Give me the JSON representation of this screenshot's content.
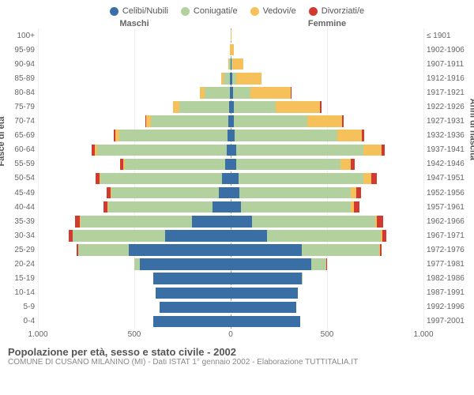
{
  "legend": {
    "items": [
      {
        "label": "Celibi/Nubili",
        "color": "#3a6fa6"
      },
      {
        "label": "Coniugati/e",
        "color": "#b2d19e"
      },
      {
        "label": "Vedovi/e",
        "color": "#f6c15a"
      },
      {
        "label": "Divorziati/e",
        "color": "#d23a2f"
      }
    ]
  },
  "headers": {
    "male": "Maschi",
    "female": "Femmine"
  },
  "axes": {
    "left_title": "Fasce di età",
    "right_title": "Anni di nascita",
    "x_ticks": [
      {
        "pos": 0,
        "label": "1.000"
      },
      {
        "pos": 25,
        "label": "500"
      },
      {
        "pos": 50,
        "label": "0"
      },
      {
        "pos": 75,
        "label": "500"
      },
      {
        "pos": 100,
        "label": "1.000"
      }
    ],
    "x_max": 1000,
    "grid_color": "#eeeeee",
    "center_line_color": "#999999"
  },
  "age_labels": [
    "100+",
    "95-99",
    "90-94",
    "85-89",
    "80-84",
    "75-79",
    "70-74",
    "65-69",
    "60-64",
    "55-59",
    "50-54",
    "45-49",
    "40-44",
    "35-39",
    "30-34",
    "25-29",
    "20-24",
    "15-19",
    "10-14",
    "5-9",
    "0-4"
  ],
  "birth_labels": [
    "≤ 1901",
    "1902-1906",
    "1907-1911",
    "1912-1916",
    "1917-1921",
    "1922-1926",
    "1927-1931",
    "1932-1936",
    "1937-1941",
    "1942-1946",
    "1947-1951",
    "1952-1956",
    "1957-1961",
    "1962-1966",
    "1967-1971",
    "1972-1976",
    "1977-1981",
    "1982-1986",
    "1987-1991",
    "1992-1996",
    "1997-2001"
  ],
  "series_colors": {
    "single": "#3a6fa6",
    "married": "#b2d19e",
    "widowed": "#f6c15a",
    "divorced": "#d23a2f"
  },
  "rows": [
    {
      "m": {
        "single": 0,
        "married": 0,
        "widowed": 1,
        "divorced": 0
      },
      "f": {
        "single": 1,
        "married": 0,
        "widowed": 2,
        "divorced": 0
      }
    },
    {
      "m": {
        "single": 1,
        "married": 1,
        "widowed": 2,
        "divorced": 0
      },
      "f": {
        "single": 2,
        "married": 0,
        "widowed": 15,
        "divorced": 0
      }
    },
    {
      "m": {
        "single": 2,
        "married": 5,
        "widowed": 5,
        "divorced": 0
      },
      "f": {
        "single": 5,
        "married": 2,
        "widowed": 60,
        "divorced": 0
      }
    },
    {
      "m": {
        "single": 3,
        "married": 35,
        "widowed": 12,
        "divorced": 0
      },
      "f": {
        "single": 10,
        "married": 20,
        "widowed": 130,
        "divorced": 0
      }
    },
    {
      "m": {
        "single": 5,
        "married": 130,
        "widowed": 25,
        "divorced": 0
      },
      "f": {
        "single": 12,
        "married": 90,
        "widowed": 210,
        "divorced": 2
      }
    },
    {
      "m": {
        "single": 8,
        "married": 260,
        "widowed": 30,
        "divorced": 2
      },
      "f": {
        "single": 15,
        "married": 220,
        "widowed": 230,
        "divorced": 5
      }
    },
    {
      "m": {
        "single": 12,
        "married": 400,
        "widowed": 25,
        "divorced": 5
      },
      "f": {
        "single": 18,
        "married": 380,
        "widowed": 180,
        "divorced": 8
      }
    },
    {
      "m": {
        "single": 18,
        "married": 560,
        "widowed": 20,
        "divorced": 10
      },
      "f": {
        "single": 22,
        "married": 530,
        "widowed": 130,
        "divorced": 12
      }
    },
    {
      "m": {
        "single": 22,
        "married": 670,
        "widowed": 15,
        "divorced": 14
      },
      "f": {
        "single": 28,
        "married": 660,
        "widowed": 95,
        "divorced": 16
      }
    },
    {
      "m": {
        "single": 28,
        "married": 520,
        "widowed": 8,
        "divorced": 16
      },
      "f": {
        "single": 30,
        "married": 540,
        "widowed": 55,
        "divorced": 18
      }
    },
    {
      "m": {
        "single": 45,
        "married": 630,
        "widowed": 6,
        "divorced": 22
      },
      "f": {
        "single": 40,
        "married": 650,
        "widowed": 40,
        "divorced": 28
      }
    },
    {
      "m": {
        "single": 60,
        "married": 560,
        "widowed": 4,
        "divorced": 20
      },
      "f": {
        "single": 45,
        "married": 580,
        "widowed": 25,
        "divorced": 26
      }
    },
    {
      "m": {
        "single": 95,
        "married": 540,
        "widowed": 3,
        "divorced": 22
      },
      "f": {
        "single": 55,
        "married": 570,
        "widowed": 15,
        "divorced": 28
      }
    },
    {
      "m": {
        "single": 200,
        "married": 580,
        "widowed": 2,
        "divorced": 24
      },
      "f": {
        "single": 110,
        "married": 640,
        "widowed": 10,
        "divorced": 30
      }
    },
    {
      "m": {
        "single": 340,
        "married": 480,
        "widowed": 1,
        "divorced": 18
      },
      "f": {
        "single": 190,
        "married": 590,
        "widowed": 6,
        "divorced": 22
      }
    },
    {
      "m": {
        "single": 530,
        "married": 260,
        "widowed": 0,
        "divorced": 8
      },
      "f": {
        "single": 370,
        "married": 400,
        "widowed": 3,
        "divorced": 10
      }
    },
    {
      "m": {
        "single": 470,
        "married": 30,
        "widowed": 0,
        "divorced": 1
      },
      "f": {
        "single": 420,
        "married": 75,
        "widowed": 0,
        "divorced": 2
      }
    },
    {
      "m": {
        "single": 400,
        "married": 0,
        "widowed": 0,
        "divorced": 0
      },
      "f": {
        "single": 370,
        "married": 1,
        "widowed": 0,
        "divorced": 0
      }
    },
    {
      "m": {
        "single": 390,
        "married": 0,
        "widowed": 0,
        "divorced": 0
      },
      "f": {
        "single": 350,
        "married": 0,
        "widowed": 0,
        "divorced": 0
      }
    },
    {
      "m": {
        "single": 370,
        "married": 0,
        "widowed": 0,
        "divorced": 0
      },
      "f": {
        "single": 340,
        "married": 0,
        "widowed": 0,
        "divorced": 0
      }
    },
    {
      "m": {
        "single": 400,
        "married": 0,
        "widowed": 0,
        "divorced": 0
      },
      "f": {
        "single": 360,
        "married": 0,
        "widowed": 0,
        "divorced": 0
      }
    }
  ],
  "footer": {
    "title": "Popolazione per età, sesso e stato civile - 2002",
    "subtitle": "COMUNE DI CUSANO MILANINO (MI) - Dati ISTAT 1° gennaio 2002 - Elaborazione TUTTITALIA.IT"
  }
}
